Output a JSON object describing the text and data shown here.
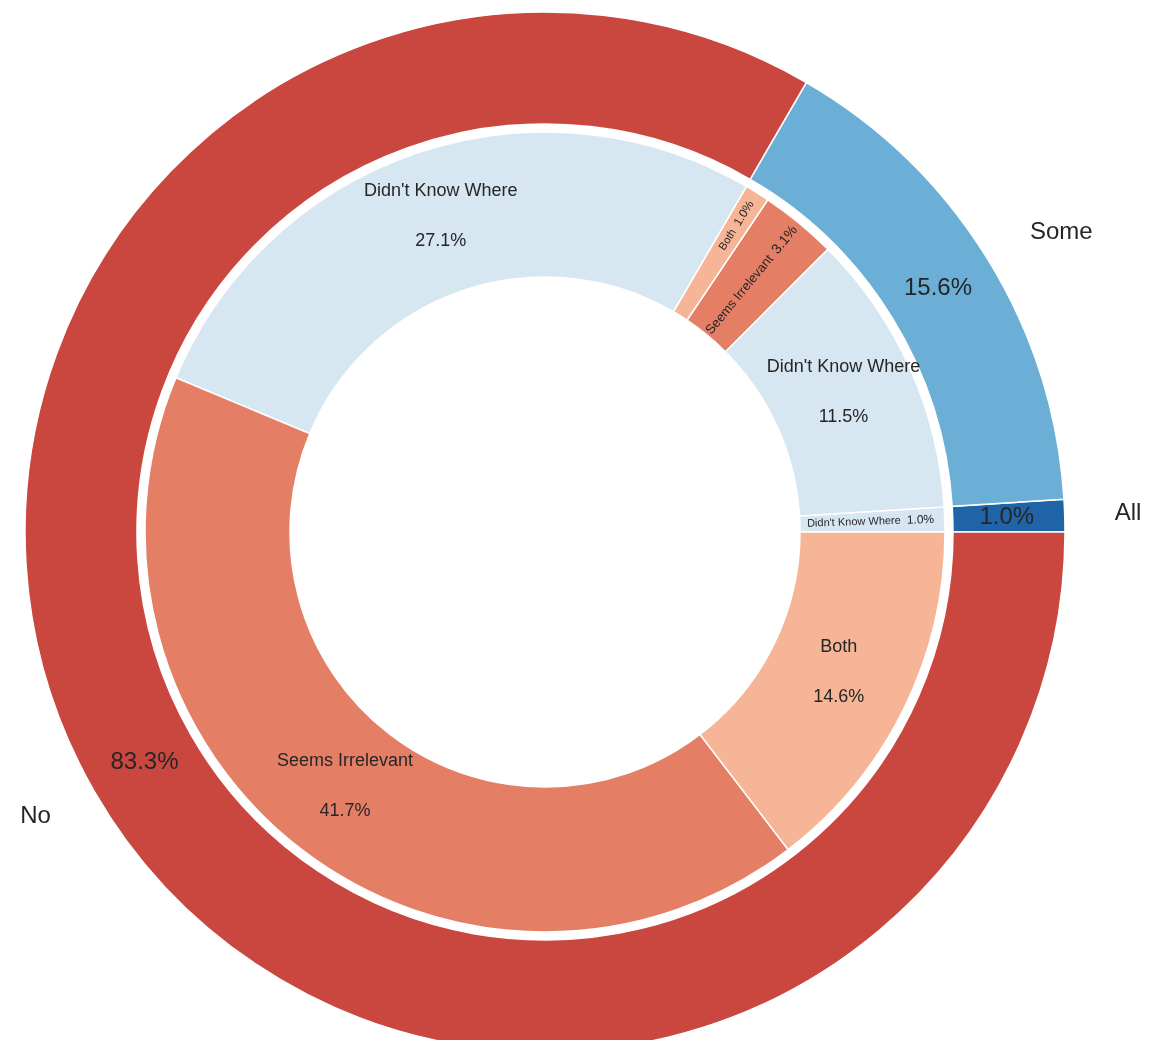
{
  "chart_data": [
    {
      "type": "donut",
      "categories": [
        "All",
        "Some",
        "No"
      ],
      "values": [
        1.0,
        15.6,
        83.3
      ],
      "colors": [
        "#2064a8",
        "#6baed6",
        "#c9473f"
      ],
      "value_labels": [
        "1.0%",
        "15.6%",
        "83.3%"
      ]
    },
    {
      "type": "donut",
      "categories": [
        "Didn't Know Where",
        "Didn't Know Where",
        "Seems Irrelevant",
        "Both",
        "Didn't Know Where",
        "Seems Irrelevant",
        "Both"
      ],
      "values": [
        1.0,
        11.5,
        3.1,
        1.0,
        27.1,
        41.7,
        14.6
      ],
      "colors": [
        "#d7e7f1",
        "#d7e7f1",
        "#e47f66",
        "#f5b596",
        "#d7e7f1",
        "#e47f66",
        "#f5b596"
      ],
      "value_labels": [
        "1.0%",
        "11.5%",
        "3.1%",
        "1.0%",
        "27.1%",
        "41.7%",
        "14.6%"
      ]
    }
  ]
}
